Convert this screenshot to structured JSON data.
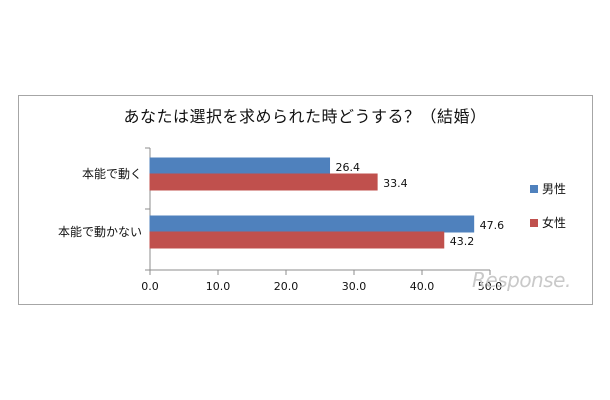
{
  "chart_data": {
    "type": "bar",
    "orientation": "horizontal",
    "title": "あなたは選択を求められた時どうする？（結婚）",
    "categories": [
      "本能で動く",
      "本能で動かない"
    ],
    "series": [
      {
        "name": "男性",
        "color": "#4f81bd",
        "values": [
          26.4,
          47.6
        ],
        "labels": [
          "26.4",
          "47.6"
        ]
      },
      {
        "name": "女性",
        "color": "#c0504d",
        "values": [
          33.4,
          43.2
        ],
        "labels": [
          "33.4",
          "43.2"
        ]
      }
    ],
    "xlim": [
      0,
      50
    ],
    "xticks": [
      "0.0",
      "10.0",
      "20.0",
      "30.0",
      "40.0",
      "50.0"
    ],
    "xlabel": "",
    "ylabel": "",
    "grid": false,
    "legend": "right"
  },
  "watermark": "Response."
}
